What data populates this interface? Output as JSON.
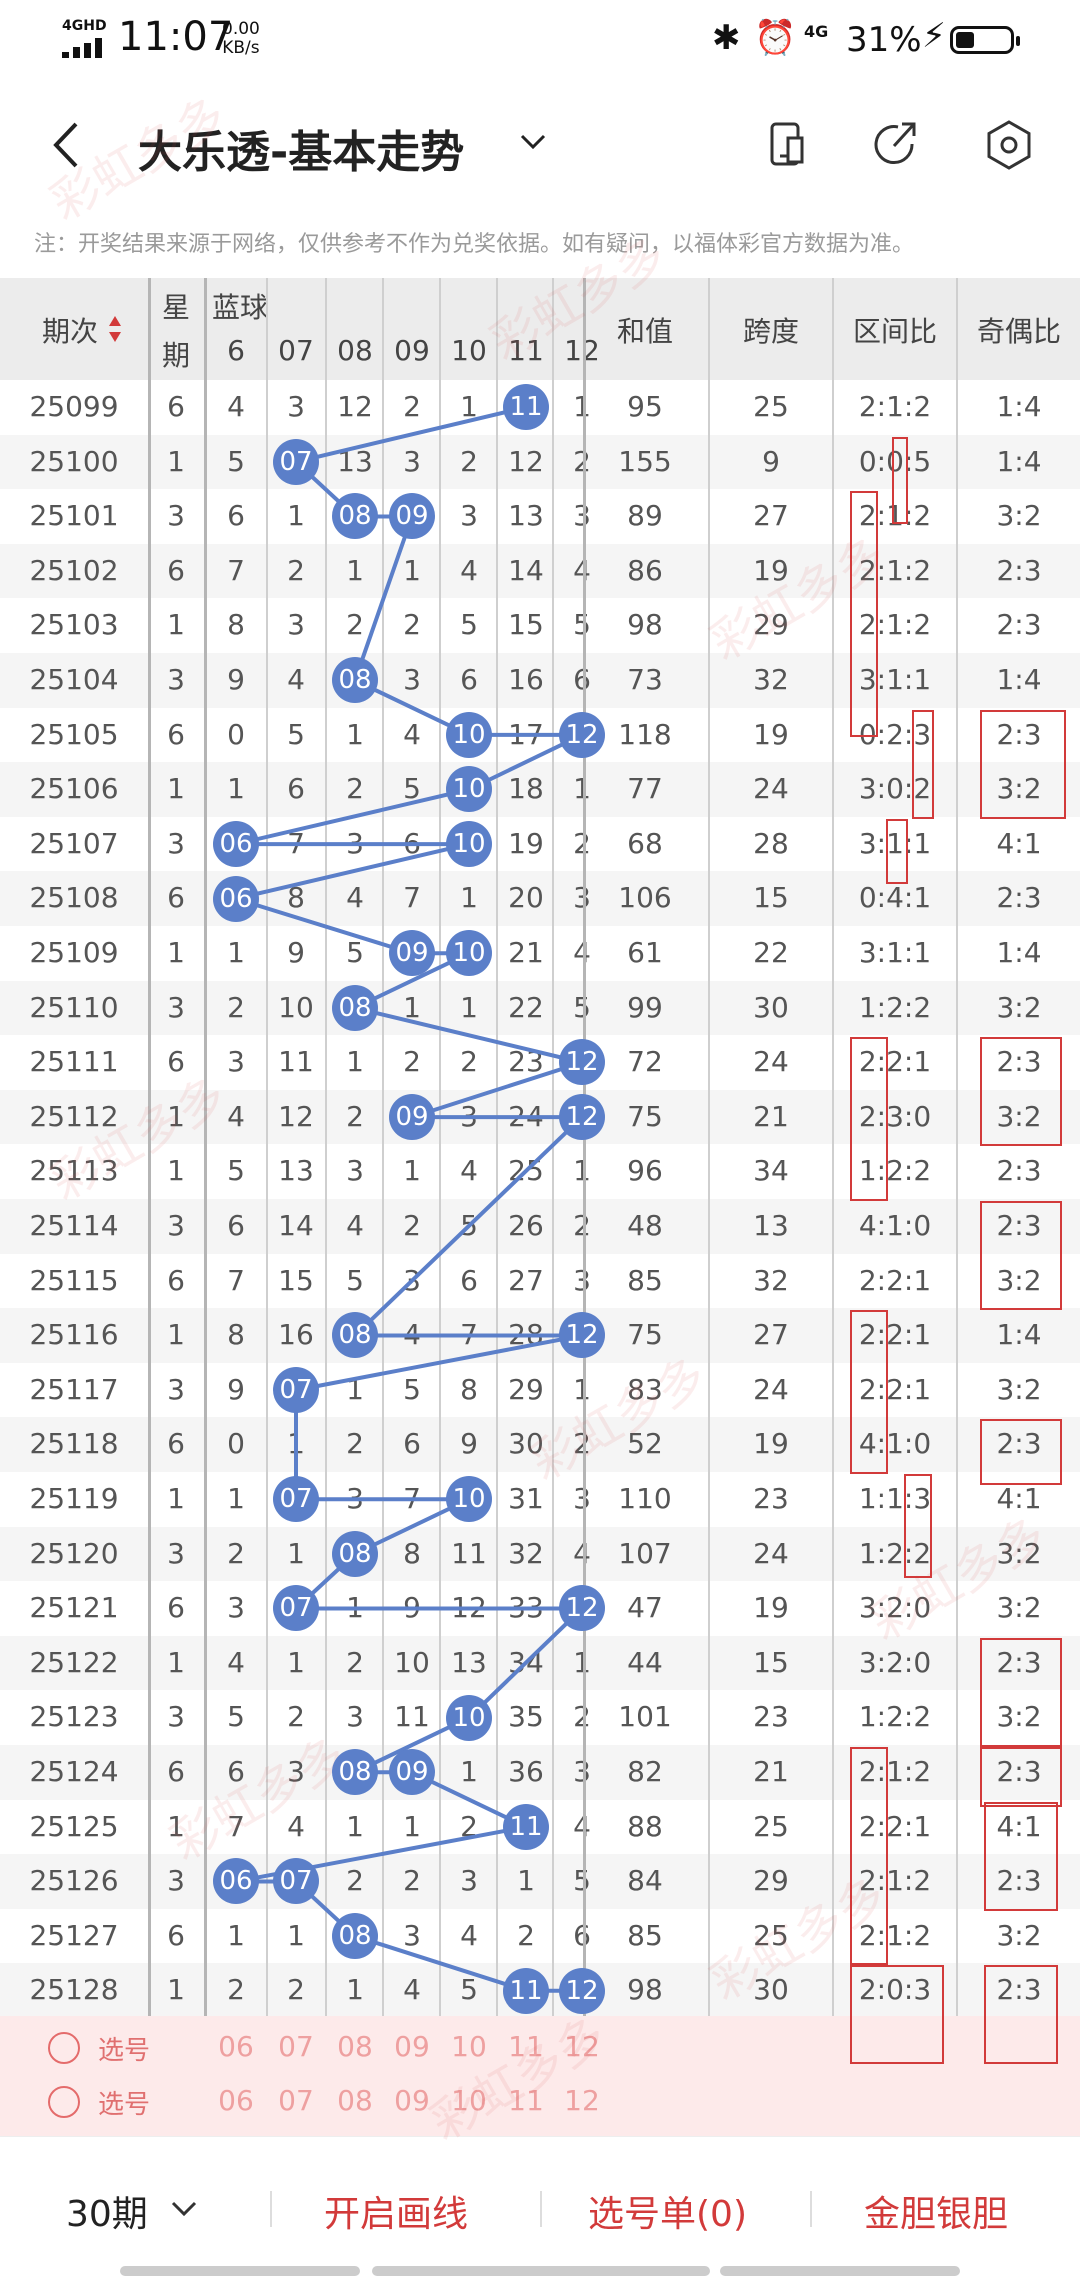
{
  "status_bar": {
    "network": "4GHD",
    "time": "11:07",
    "speed_value": "0.00",
    "speed_unit": "KB/s",
    "network2": "4G",
    "battery": "31%"
  },
  "header": {
    "title": "大乐透-基本走势",
    "icons": [
      "back-icon",
      "chevron-down-icon",
      "phone-icon",
      "share-icon",
      "settings-icon"
    ]
  },
  "note": "注：开奖结果来源于网络，仅供参考不作为兑奖依据。如有疑问，以福体彩官方数据为准。",
  "table": {
    "headers": {
      "issue": "期次",
      "week_top": "星",
      "week_bottom": "期",
      "blue": "蓝球",
      "sum": "和值",
      "span": "跨度",
      "range": "区间比",
      "odd_even": "奇偶比"
    },
    "blue_cols": [
      "06",
      "07",
      "08",
      "09",
      "10",
      "11",
      "12"
    ],
    "rows": [
      {
        "issue": "25099",
        "week": "6",
        "blue": [
          "4",
          "3",
          "12",
          "2",
          "1",
          "11",
          "1"
        ],
        "sum": "95",
        "span": "25",
        "range": "2:1:2",
        "odd": "1:4"
      },
      {
        "issue": "25100",
        "week": "1",
        "blue": [
          "5",
          "07",
          "13",
          "3",
          "2",
          "12",
          "2"
        ],
        "sum": "155",
        "span": "9",
        "range": "0:0:5",
        "odd": "1:4"
      },
      {
        "issue": "25101",
        "week": "3",
        "blue": [
          "6",
          "1",
          "08",
          "09",
          "3",
          "13",
          "3"
        ],
        "sum": "89",
        "span": "27",
        "range": "2:1:2",
        "odd": "3:2"
      },
      {
        "issue": "25102",
        "week": "6",
        "blue": [
          "7",
          "2",
          "1",
          "1",
          "4",
          "14",
          "4"
        ],
        "sum": "86",
        "span": "19",
        "range": "2:1:2",
        "odd": "2:3"
      },
      {
        "issue": "25103",
        "week": "1",
        "blue": [
          "8",
          "3",
          "2",
          "2",
          "5",
          "15",
          "5"
        ],
        "sum": "98",
        "span": "29",
        "range": "2:1:2",
        "odd": "2:3"
      },
      {
        "issue": "25104",
        "week": "3",
        "blue": [
          "9",
          "4",
          "08",
          "3",
          "6",
          "16",
          "6"
        ],
        "sum": "73",
        "span": "32",
        "range": "3:1:1",
        "odd": "1:4"
      },
      {
        "issue": "25105",
        "week": "6",
        "blue": [
          "0",
          "5",
          "1",
          "4",
          "10",
          "17",
          "12"
        ],
        "sum": "118",
        "span": "19",
        "range": "0:2:3",
        "odd": "2:3"
      },
      {
        "issue": "25106",
        "week": "1",
        "blue": [
          "1",
          "6",
          "2",
          "5",
          "10",
          "18",
          "1"
        ],
        "sum": "77",
        "span": "24",
        "range": "3:0:2",
        "odd": "3:2"
      },
      {
        "issue": "25107",
        "week": "3",
        "blue": [
          "06",
          "7",
          "3",
          "6",
          "10",
          "19",
          "2"
        ],
        "sum": "68",
        "span": "28",
        "range": "3:1:1",
        "odd": "4:1"
      },
      {
        "issue": "25108",
        "week": "6",
        "blue": [
          "06",
          "8",
          "4",
          "7",
          "1",
          "20",
          "3"
        ],
        "sum": "106",
        "span": "15",
        "range": "0:4:1",
        "odd": "2:3"
      },
      {
        "issue": "25109",
        "week": "1",
        "blue": [
          "1",
          "9",
          "5",
          "09",
          "10",
          "21",
          "4"
        ],
        "sum": "61",
        "span": "22",
        "range": "3:1:1",
        "odd": "1:4"
      },
      {
        "issue": "25110",
        "week": "3",
        "blue": [
          "2",
          "10",
          "08",
          "1",
          "1",
          "22",
          "5"
        ],
        "sum": "99",
        "span": "30",
        "range": "1:2:2",
        "odd": "3:2"
      },
      {
        "issue": "25111",
        "week": "6",
        "blue": [
          "3",
          "11",
          "1",
          "2",
          "2",
          "23",
          "12"
        ],
        "sum": "72",
        "span": "24",
        "range": "2:2:1",
        "odd": "2:3"
      },
      {
        "issue": "25112",
        "week": "1",
        "blue": [
          "4",
          "12",
          "2",
          "09",
          "3",
          "24",
          "12"
        ],
        "sum": "75",
        "span": "21",
        "range": "2:3:0",
        "odd": "3:2"
      },
      {
        "issue": "25113",
        "week": "1",
        "blue": [
          "5",
          "13",
          "3",
          "1",
          "4",
          "25",
          "1"
        ],
        "sum": "96",
        "span": "34",
        "range": "1:2:2",
        "odd": "2:3"
      },
      {
        "issue": "25114",
        "week": "3",
        "blue": [
          "6",
          "14",
          "4",
          "2",
          "5",
          "26",
          "2"
        ],
        "sum": "48",
        "span": "13",
        "range": "4:1:0",
        "odd": "2:3"
      },
      {
        "issue": "25115",
        "week": "6",
        "blue": [
          "7",
          "15",
          "5",
          "3",
          "6",
          "27",
          "3"
        ],
        "sum": "85",
        "span": "32",
        "range": "2:2:1",
        "odd": "3:2"
      },
      {
        "issue": "25116",
        "week": "1",
        "blue": [
          "8",
          "16",
          "08",
          "4",
          "7",
          "28",
          "12"
        ],
        "sum": "75",
        "span": "27",
        "range": "2:2:1",
        "odd": "1:4"
      },
      {
        "issue": "25117",
        "week": "3",
        "blue": [
          "9",
          "07",
          "1",
          "5",
          "8",
          "29",
          "1"
        ],
        "sum": "83",
        "span": "24",
        "range": "2:2:1",
        "odd": "3:2"
      },
      {
        "issue": "25118",
        "week": "6",
        "blue": [
          "0",
          "1",
          "2",
          "6",
          "9",
          "30",
          "2"
        ],
        "sum": "52",
        "span": "19",
        "range": "4:1:0",
        "odd": "2:3"
      },
      {
        "issue": "25119",
        "week": "1",
        "blue": [
          "1",
          "07",
          "3",
          "7",
          "10",
          "31",
          "3"
        ],
        "sum": "110",
        "span": "23",
        "range": "1:1:3",
        "odd": "4:1"
      },
      {
        "issue": "25120",
        "week": "3",
        "blue": [
          "2",
          "1",
          "08",
          "8",
          "11",
          "32",
          "4"
        ],
        "sum": "107",
        "span": "24",
        "range": "1:2:2",
        "odd": "3:2"
      },
      {
        "issue": "25121",
        "week": "6",
        "blue": [
          "3",
          "07",
          "1",
          "9",
          "12",
          "33",
          "12"
        ],
        "sum": "47",
        "span": "19",
        "range": "3:2:0",
        "odd": "3:2"
      },
      {
        "issue": "25122",
        "week": "1",
        "blue": [
          "4",
          "1",
          "2",
          "10",
          "13",
          "34",
          "1"
        ],
        "sum": "44",
        "span": "15",
        "range": "3:2:0",
        "odd": "2:3"
      },
      {
        "issue": "25123",
        "week": "3",
        "blue": [
          "5",
          "2",
          "3",
          "11",
          "10",
          "35",
          "2"
        ],
        "sum": "101",
        "span": "23",
        "range": "1:2:2",
        "odd": "3:2"
      },
      {
        "issue": "25124",
        "week": "6",
        "blue": [
          "6",
          "3",
          "08",
          "09",
          "1",
          "36",
          "3"
        ],
        "sum": "82",
        "span": "21",
        "range": "2:1:2",
        "odd": "2:3"
      },
      {
        "issue": "25125",
        "week": "1",
        "blue": [
          "7",
          "4",
          "1",
          "1",
          "2",
          "11",
          "4"
        ],
        "sum": "88",
        "span": "25",
        "range": "2:2:1",
        "odd": "4:1"
      },
      {
        "issue": "25126",
        "week": "3",
        "blue": [
          "06",
          "07",
          "2",
          "2",
          "3",
          "1",
          "5"
        ],
        "sum": "84",
        "span": "29",
        "range": "2:1:2",
        "odd": "2:3"
      },
      {
        "issue": "25127",
        "week": "6",
        "blue": [
          "1",
          "1",
          "08",
          "3",
          "4",
          "2",
          "6"
        ],
        "sum": "85",
        "span": "25",
        "range": "2:1:2",
        "odd": "3:2"
      },
      {
        "issue": "25128",
        "week": "1",
        "blue": [
          "2",
          "2",
          "1",
          "4",
          "5",
          "11",
          "12"
        ],
        "sum": "98",
        "span": "30",
        "range": "2:0:3",
        "odd": "2:3"
      }
    ]
  },
  "pick": {
    "label": "选号",
    "nums": [
      "06",
      "07",
      "08",
      "09",
      "10",
      "11",
      "12"
    ]
  },
  "bottom": {
    "period": "30期",
    "draw_line": "开启画线",
    "picklist": "选号单(0)",
    "golden": "金胆银胆"
  },
  "watermark": "彩虹多多",
  "colors": {
    "ball": "#5b7fc9",
    "accent": "#d23a3a"
  }
}
